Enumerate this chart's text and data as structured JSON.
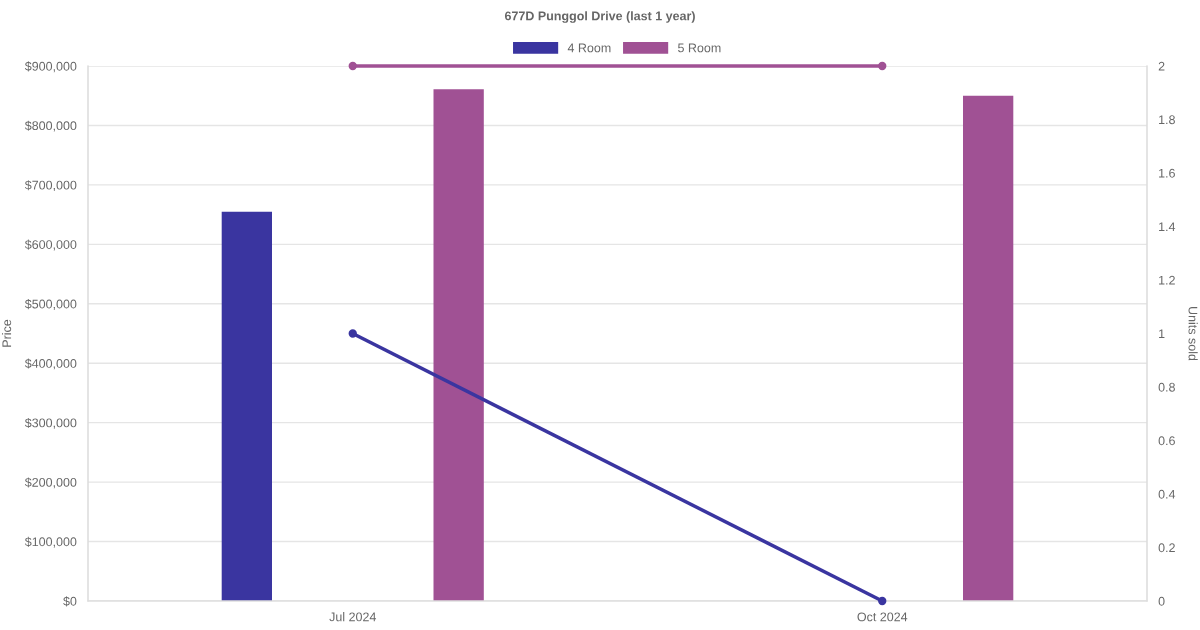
{
  "chart_data": {
    "type": "bar",
    "title": "677D Punggol Drive (last 1 year)",
    "ylabel": "Price",
    "y2label": "Units sold",
    "categories": [
      "Jul 2024",
      "Oct 2024"
    ],
    "series": [
      {
        "name": "4 Room",
        "color": "#3a35a0",
        "values": [
          655000,
          null
        ]
      },
      {
        "name": "5 Room",
        "color": "#a05194",
        "values": [
          861000,
          850000
        ]
      },
      {
        "type": "line",
        "axis": "y2",
        "color": "#3a35a0",
        "values": [
          1,
          0
        ]
      },
      {
        "type": "line",
        "axis": "y2",
        "color": "#a05194",
        "values": [
          2,
          2
        ]
      }
    ],
    "ylim": [
      0,
      900000
    ],
    "yticks": [
      {
        "value": 0,
        "label": "$0"
      },
      {
        "value": 100000,
        "label": "$100,000"
      },
      {
        "value": 200000,
        "label": "$200,000"
      },
      {
        "value": 300000,
        "label": "$300,000"
      },
      {
        "value": 400000,
        "label": "$400,000"
      },
      {
        "value": 500000,
        "label": "$500,000"
      },
      {
        "value": 600000,
        "label": "$600,000"
      },
      {
        "value": 700000,
        "label": "$700,000"
      },
      {
        "value": 800000,
        "label": "$800,000"
      },
      {
        "value": 900000,
        "label": "$900,000"
      }
    ],
    "y2lim": [
      0,
      2
    ],
    "y2ticks": [
      0,
      0.2,
      0.4,
      0.6,
      0.8,
      1,
      1.2,
      1.4,
      1.6,
      1.8,
      2
    ],
    "grid": "y",
    "legend": "top",
    "marker": "circle",
    "line_style": "solid"
  }
}
